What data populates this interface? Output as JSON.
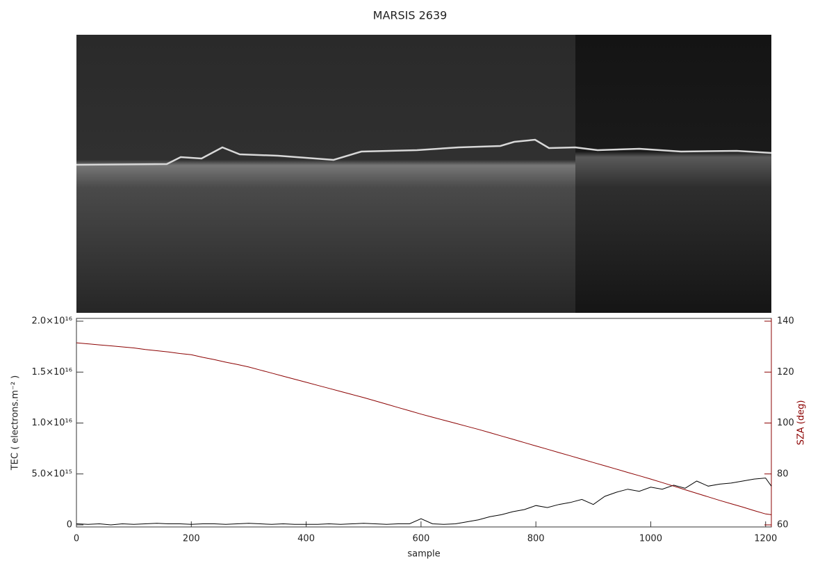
{
  "chart_data": {
    "type": "line",
    "title": "MARSIS 2639",
    "xlabel": "sample",
    "ylabel": "TEC ( electrons.m⁻² )",
    "y2label": "SZA (deg)",
    "x": [
      0,
      20,
      40,
      60,
      80,
      100,
      120,
      140,
      160,
      180,
      200,
      220,
      240,
      260,
      280,
      300,
      320,
      340,
      360,
      380,
      400,
      420,
      440,
      460,
      480,
      500,
      520,
      540,
      560,
      580,
      600,
      620,
      640,
      660,
      680,
      700,
      720,
      740,
      760,
      780,
      800,
      820,
      840,
      860,
      880,
      900,
      920,
      940,
      960,
      980,
      1000,
      1020,
      1040,
      1060,
      1080,
      1100,
      1120,
      1140,
      1160,
      1180,
      1200,
      1210
    ],
    "series": [
      {
        "color": "#000000",
        "axis": "y",
        "values": [
          100000000000000.0,
          50000000000000.0,
          100000000000000.0,
          0,
          100000000000000.0,
          50000000000000.0,
          100000000000000.0,
          150000000000000.0,
          100000000000000.0,
          100000000000000.0,
          50000000000000.0,
          100000000000000.0,
          100000000000000.0,
          50000000000000.0,
          100000000000000.0,
          150000000000000.0,
          100000000000000.0,
          50000000000000.0,
          100000000000000.0,
          50000000000000.0,
          50000000000000.0,
          50000000000000.0,
          100000000000000.0,
          50000000000000.0,
          100000000000000.0,
          150000000000000.0,
          100000000000000.0,
          50000000000000.0,
          100000000000000.0,
          100000000000000.0,
          600000000000000.0,
          100000000000000.0,
          50000000000000.0,
          100000000000000.0,
          300000000000000.0,
          500000000000000.0,
          800000000000000.0,
          1000000000000000.0,
          1300000000000000.0,
          1500000000000000.0,
          1900000000000000.0,
          1700000000000000.0,
          2000000000000000.0,
          2200000000000000.0,
          2500000000000000.0,
          2000000000000000.0,
          2800000000000000.0,
          3200000000000000.0,
          3500000000000000.0,
          3300000000000000.0,
          3700000000000000.0,
          3500000000000000.0,
          3900000000000000.0,
          3600000000000000.0,
          4300000000000000.0,
          3800000000000000.0,
          4000000000000000.0,
          4100000000000000.0,
          4300000000000000.0,
          4500000000000000.0,
          4600000000000000.0,
          3800000000000000.0
        ]
      },
      {
        "color": "#8b0000",
        "axis": "y2",
        "values": [
          131.5,
          131.1,
          130.7,
          130.3,
          129.9,
          129.5,
          128.9,
          128.4,
          127.9,
          127.3,
          126.8,
          125.8,
          124.9,
          123.9,
          123,
          122,
          120.8,
          119.6,
          118.4,
          117.2,
          116,
          114.8,
          113.6,
          112.4,
          111.2,
          110,
          108.7,
          107.4,
          106.1,
          104.8,
          103.5,
          102.3,
          101.1,
          99.9,
          98.7,
          97.5,
          96.2,
          94.9,
          93.6,
          92.3,
          91,
          89.7,
          88.4,
          87.1,
          85.8,
          84.5,
          83.2,
          81.9,
          80.6,
          79.3,
          78,
          76.6,
          75.2,
          73.8,
          72.4,
          71,
          69.6,
          68.3,
          67,
          65.6,
          64.3,
          64
        ]
      }
    ],
    "xlim": [
      0,
      1210
    ],
    "xticks": [
      0,
      200,
      400,
      600,
      800,
      1000,
      1200
    ],
    "ylim": [
      0,
      2e+16
    ],
    "yticks": [
      0,
      {
        "value": 5000000000000000.0,
        "label": "5.0×10¹⁵"
      },
      {
        "value": 1e+16,
        "label": "1.0×10¹⁶"
      },
      {
        "value": 1.5e+16,
        "label": "1.5×10¹⁶"
      },
      {
        "value": 2e+16,
        "label": "2.0×10¹⁶"
      }
    ],
    "y2lim": [
      60,
      140
    ],
    "y2ticks": [
      60,
      80,
      100,
      120,
      140
    ],
    "y2color": "#8b0000"
  }
}
